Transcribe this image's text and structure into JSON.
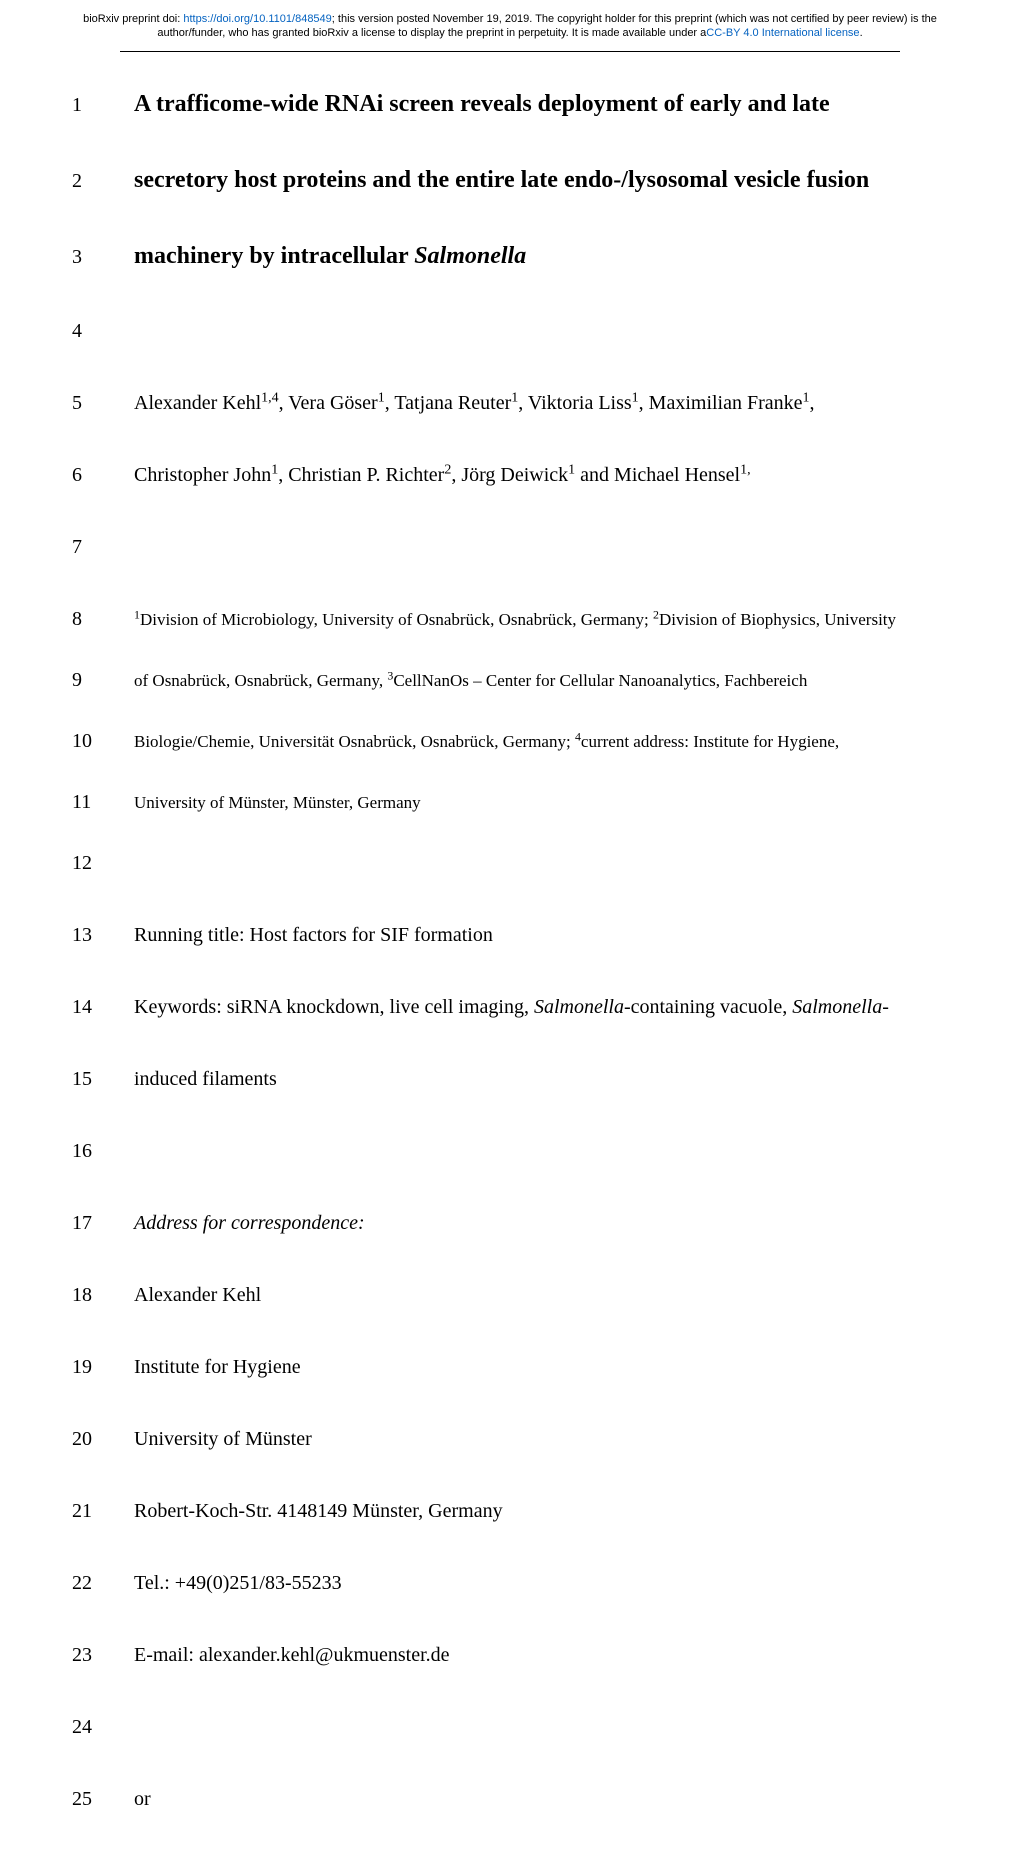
{
  "preprint_notice": {
    "prefix": "bioRxiv preprint doi: ",
    "doi_url": "https://doi.org/10.1101/848549",
    "mid": "; this version posted November 19, 2019. The copyright holder for this preprint (which was not certified by peer review) is the author/funder, who has granted bioRxiv a license to display the preprint in perpetuity. It is made available under a",
    "license_label": "CC-BY 4.0 International license",
    "suffix": "."
  },
  "lines": [
    {
      "n": "1",
      "cls": "title-line",
      "gap": "row-gap-title",
      "segments": [
        {
          "t": "A trafficome-wide RNAi screen reveals deployment of early and late"
        }
      ]
    },
    {
      "n": "2",
      "cls": "title-line",
      "gap": "row-gap-title",
      "segments": [
        {
          "t": "secretory host proteins and the entire late endo-/lysosomal vesicle fusion"
        }
      ]
    },
    {
      "n": "3",
      "cls": "title-line",
      "gap": "row-gap-title",
      "segments": [
        {
          "t": "machinery by intracellular "
        },
        {
          "t": "Salmonella",
          "italic": true
        }
      ]
    },
    {
      "n": "4",
      "cls": "",
      "gap": "row-gap",
      "segments": []
    },
    {
      "n": "5",
      "cls": "",
      "gap": "row-gap",
      "segments": [
        {
          "t": "Alexander Kehl"
        },
        {
          "t": "1,4",
          "sup": true
        },
        {
          "t": ", Vera Göser"
        },
        {
          "t": "1",
          "sup": true
        },
        {
          "t": ", Tatjana Reuter"
        },
        {
          "t": "1",
          "sup": true
        },
        {
          "t": ", Viktoria Liss"
        },
        {
          "t": "1",
          "sup": true
        },
        {
          "t": ", Maximilian Franke"
        },
        {
          "t": "1",
          "sup": true
        },
        {
          "t": ","
        }
      ]
    },
    {
      "n": "6",
      "cls": "",
      "gap": "row-gap",
      "segments": [
        {
          "t": "Christopher John"
        },
        {
          "t": "1",
          "sup": true
        },
        {
          "t": ", Christian P. Richter"
        },
        {
          "t": "2",
          "sup": true
        },
        {
          "t": ", Jörg Deiwick"
        },
        {
          "t": "1",
          "sup": true
        },
        {
          "t": " and Michael Hensel"
        },
        {
          "t": "1,",
          "sup": true
        }
      ]
    },
    {
      "n": "7",
      "cls": "",
      "gap": "row-gap",
      "segments": []
    },
    {
      "n": "8",
      "cls": "small",
      "gap": "row-gap-small",
      "segments": [
        {
          "t": "1",
          "sup": true
        },
        {
          "t": "Division of Microbiology, University of Osnabrück, Osnabrück, Germany; "
        },
        {
          "t": "2",
          "sup": true
        },
        {
          "t": "Division of Biophysics, University"
        }
      ]
    },
    {
      "n": "9",
      "cls": "small",
      "gap": "row-gap-small",
      "segments": [
        {
          "t": "of Osnabrück, Osnabrück, Germany, "
        },
        {
          "t": "3",
          "sup": true
        },
        {
          "t": "CellNanOs – Center for Cellular Nanoanalytics, Fachbereich"
        }
      ]
    },
    {
      "n": "10",
      "cls": "small",
      "gap": "row-gap-small",
      "segments": [
        {
          "t": "Biologie/Chemie, Universität Osnabrück, Osnabrück, Germany; "
        },
        {
          "t": "4",
          "sup": true
        },
        {
          "t": "current address: Institute for Hygiene,"
        }
      ]
    },
    {
      "n": "11",
      "cls": "small",
      "gap": "row-gap-small",
      "segments": [
        {
          "t": "University of Münster, Münster, Germany"
        }
      ]
    },
    {
      "n": "12",
      "cls": "",
      "gap": "row-gap",
      "segments": []
    },
    {
      "n": "13",
      "cls": "",
      "gap": "row-gap",
      "segments": [
        {
          "t": "Running title: Host factors for SIF formation"
        }
      ]
    },
    {
      "n": "14",
      "cls": "",
      "gap": "row-gap",
      "segments": [
        {
          "t": "Keywords: siRNA knockdown, live cell imaging, "
        },
        {
          "t": "Salmonella",
          "italic": true
        },
        {
          "t": "-containing vacuole, "
        },
        {
          "t": "Salmonella",
          "italic": true
        },
        {
          "t": "-"
        }
      ]
    },
    {
      "n": "15",
      "cls": "",
      "gap": "row-gap",
      "segments": [
        {
          "t": "induced filaments"
        }
      ]
    },
    {
      "n": "16",
      "cls": "",
      "gap": "row-gap",
      "segments": []
    },
    {
      "n": "17",
      "cls": "",
      "gap": "row-gap",
      "segments": [
        {
          "t": "Address for correspondence:",
          "italic": true
        }
      ]
    },
    {
      "n": "18",
      "cls": "",
      "gap": "row-gap",
      "segments": [
        {
          "t": "Alexander Kehl"
        }
      ]
    },
    {
      "n": "19",
      "cls": "",
      "gap": "row-gap",
      "segments": [
        {
          "t": "Institute for Hygiene"
        }
      ]
    },
    {
      "n": "20",
      "cls": "",
      "gap": "row-gap",
      "segments": [
        {
          "t": "University of Münster"
        }
      ]
    },
    {
      "n": "21",
      "cls": "",
      "gap": "row-gap",
      "segments": [
        {
          "t": "Robert-Koch-Str. 4148149 Münster, Germany"
        }
      ]
    },
    {
      "n": "22",
      "cls": "",
      "gap": "row-gap",
      "segments": [
        {
          "t": "Tel.: +49(0)251/83-55233"
        }
      ]
    },
    {
      "n": "23",
      "cls": "",
      "gap": "row-gap",
      "segments": [
        {
          "t": "E-mail: alexander.kehl@ukmuenster.de"
        }
      ]
    },
    {
      "n": "24",
      "cls": "",
      "gap": "row-gap",
      "segments": []
    },
    {
      "n": "25",
      "cls": "",
      "gap": "row-gap",
      "segments": [
        {
          "t": "or"
        }
      ]
    }
  ]
}
